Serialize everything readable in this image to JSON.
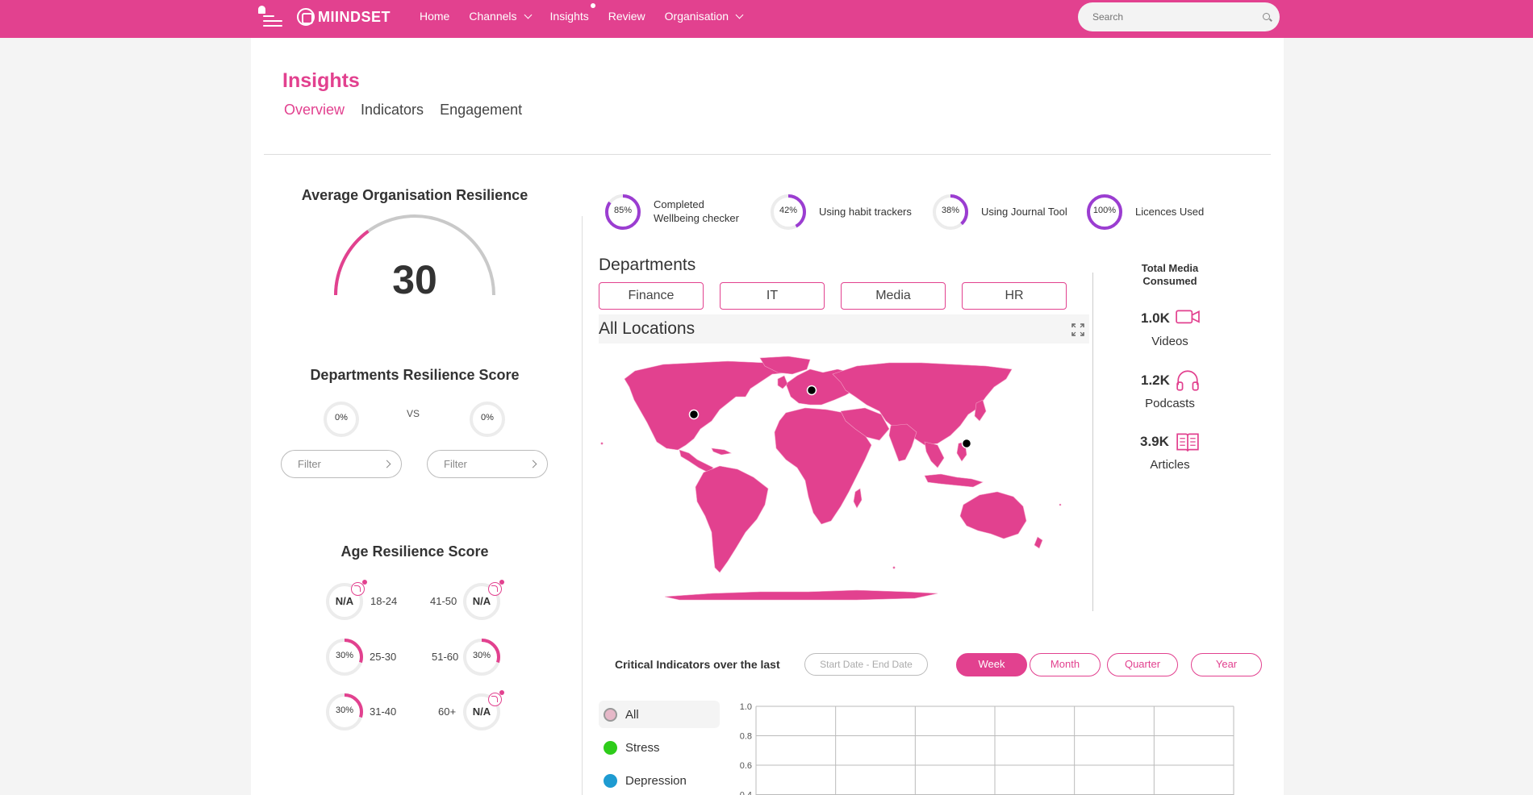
{
  "nav": {
    "brand": "MIINDSET",
    "items": [
      {
        "label": "Home",
        "has_menu": false,
        "dot": false
      },
      {
        "label": "Channels",
        "has_menu": true,
        "dot": false
      },
      {
        "label": "Insights",
        "has_menu": false,
        "dot": true
      },
      {
        "label": "Review",
        "has_menu": false,
        "dot": false
      },
      {
        "label": "Organisation",
        "has_menu": true,
        "dot": false
      }
    ],
    "search_placeholder": "Search"
  },
  "page": {
    "title": "Insights",
    "tabs": [
      "Overview",
      "Indicators",
      "Engagement"
    ],
    "active_tab": "Overview"
  },
  "colors": {
    "accent": "#e2418f",
    "ring_purple": "#9b3dd1",
    "stress": "#2ecc1a",
    "depression": "#1e9bd1",
    "all": "#e6b8c8"
  },
  "resilience": {
    "title": "Average Organisation Resilience",
    "value": "30",
    "fraction": 0.3
  },
  "departments_score": {
    "title": "Departments Resilience Score",
    "left": "0%",
    "right": "0%",
    "vs": "VS",
    "filter_placeholder": "Filter"
  },
  "age": {
    "title": "Age Resilience Score",
    "groups": [
      {
        "range": "18-24",
        "value": "N/A",
        "fraction": 0,
        "badge": true
      },
      {
        "range": "41-50",
        "value": "N/A",
        "fraction": 0,
        "badge": true
      },
      {
        "range": "25-30",
        "value": "30%",
        "fraction": 0.3,
        "badge": false
      },
      {
        "range": "51-60",
        "value": "30%",
        "fraction": 0.3,
        "badge": false
      },
      {
        "range": "31-40",
        "value": "30%",
        "fraction": 0.3,
        "badge": false
      },
      {
        "range": "60+",
        "value": "N/A",
        "fraction": 0,
        "badge": true
      }
    ]
  },
  "stats": [
    {
      "value": "85%",
      "fraction": 0.85,
      "label": "Completed Wellbeing checker"
    },
    {
      "value": "42%",
      "fraction": 0.42,
      "label": "Using habit trackers"
    },
    {
      "value": "38%",
      "fraction": 0.38,
      "label": "Using Journal Tool"
    },
    {
      "value": "100%",
      "fraction": 1.0,
      "label": "Licences Used"
    }
  ],
  "departments": {
    "title": "Departments",
    "buttons": [
      "Finance",
      "IT",
      "Media",
      "HR"
    ]
  },
  "locations": {
    "title": "All Locations"
  },
  "media": {
    "title": "Total Media Consumed",
    "items": [
      {
        "count": "1.0K",
        "label": "Videos",
        "icon": "video-icon"
      },
      {
        "count": "1.2K",
        "label": "Podcasts",
        "icon": "headphones-icon"
      },
      {
        "count": "3.9K",
        "label": "Articles",
        "icon": "book-icon"
      }
    ]
  },
  "critical": {
    "label": "Critical Indicators over the last",
    "date_placeholder": "Start Date - End Date",
    "periods": [
      "Week",
      "Month",
      "Quarter",
      "Year"
    ],
    "active_period": "Week",
    "legend": [
      {
        "label": "All",
        "color": "#e6b8c8",
        "active": true
      },
      {
        "label": "Stress",
        "color": "#2ecc1a",
        "active": false
      },
      {
        "label": "Depression",
        "color": "#1e9bd1",
        "active": false
      }
    ]
  },
  "chart_data": {
    "type": "line",
    "title": "",
    "xlabel": "",
    "ylabel": "",
    "y_ticks": [
      "1.0",
      "0.8",
      "0.6",
      "0.4"
    ],
    "ylim": [
      0.4,
      1.0
    ],
    "grid": true,
    "series": []
  }
}
